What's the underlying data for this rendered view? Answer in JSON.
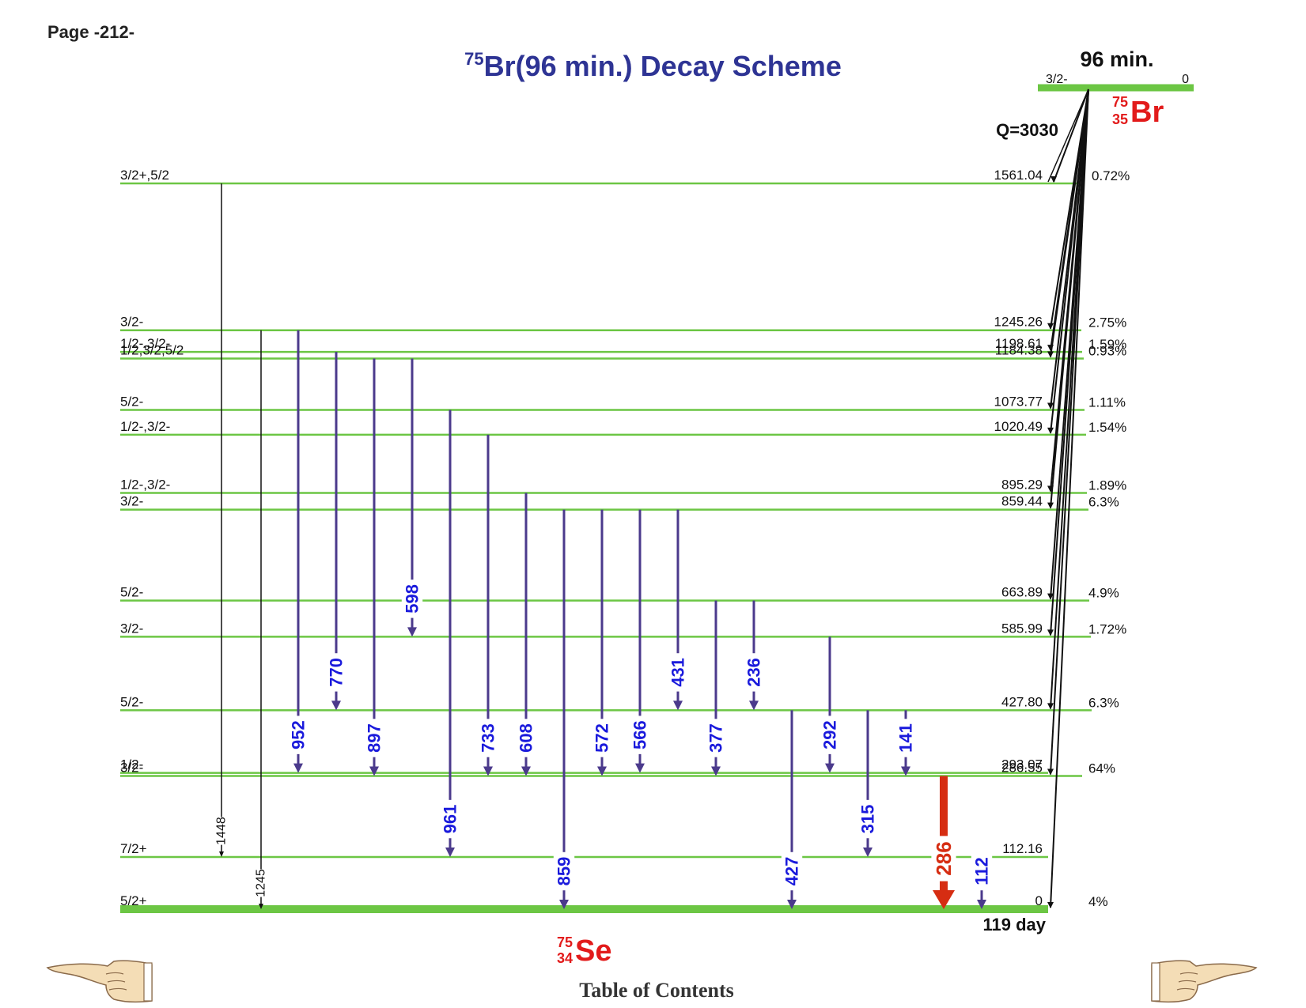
{
  "page_label": "Page -212-",
  "title": {
    "mass": "75",
    "text": "Br(96 min.) Decay Scheme"
  },
  "parent": {
    "halflife": "96 min.",
    "spin": "3/2-",
    "energy": "0",
    "mass": "75",
    "z": "35",
    "symbol": "Br",
    "q_value": "Q=3030"
  },
  "daughter": {
    "mass": "75",
    "z": "34",
    "symbol": "Se",
    "ground_halflife": "119 day"
  },
  "levels": [
    {
      "energy": "1561.04",
      "spin": "3/2+,5/2",
      "feeding": "0.72%"
    },
    {
      "energy": "1245.26",
      "spin": "3/2-",
      "feeding": "2.75%"
    },
    {
      "energy": "1198.61",
      "spin": "1/2-,3/2-",
      "feeding": "1.59%"
    },
    {
      "energy": "1184.38",
      "spin": "1/2,3/2,5/2",
      "feeding": "0.93%"
    },
    {
      "energy": "1073.77",
      "spin": "5/2-",
      "feeding": "1.11%"
    },
    {
      "energy": "1020.49",
      "spin": "1/2-,3/2-",
      "feeding": "1.54%"
    },
    {
      "energy": "895.29",
      "spin": "1/2-,3/2-",
      "feeding": "1.89%"
    },
    {
      "energy": "859.44",
      "spin": "3/2-",
      "feeding": "6.3%"
    },
    {
      "energy": "663.89",
      "spin": "5/2-",
      "feeding": "4.9%"
    },
    {
      "energy": "585.99",
      "spin": "3/2-",
      "feeding": "1.72%"
    },
    {
      "energy": "427.80",
      "spin": "5/2-",
      "feeding": "6.3%"
    },
    {
      "energy": "293.07",
      "spin": "1/2-",
      "feeding": ""
    },
    {
      "energy": "286.55",
      "spin": "3/2-",
      "feeding": "64%"
    },
    {
      "energy": "112.16",
      "spin": "7/2+",
      "feeding": ""
    },
    {
      "energy": "0",
      "spin": "5/2+",
      "feeding": "4%"
    }
  ],
  "transitions": [
    {
      "label": "1448",
      "from": "1561.04",
      "to": "112.16",
      "style": "thin"
    },
    {
      "label": "1245",
      "from": "1245.26",
      "to": "0",
      "style": "thin"
    },
    {
      "label": "952",
      "from": "1245.26",
      "to": "293.07",
      "style": "normal"
    },
    {
      "label": "770",
      "from": "1198.61",
      "to": "427.80",
      "style": "normal"
    },
    {
      "label": "897",
      "from": "1184.38",
      "to": "286.55",
      "style": "normal"
    },
    {
      "label": "598",
      "from": "1184.38",
      "to": "585.99",
      "style": "normal"
    },
    {
      "label": "961",
      "from": "1073.77",
      "to": "112.16",
      "style": "normal"
    },
    {
      "label": "733",
      "from": "1020.49",
      "to": "286.55",
      "style": "normal"
    },
    {
      "label": "608",
      "from": "895.29",
      "to": "286.55",
      "style": "normal"
    },
    {
      "label": "859",
      "from": "859.44",
      "to": "0",
      "style": "normal"
    },
    {
      "label": "572",
      "from": "859.44",
      "to": "286.55",
      "style": "normal"
    },
    {
      "label": "566",
      "from": "859.44",
      "to": "293.07",
      "style": "normal"
    },
    {
      "label": "431",
      "from": "859.44",
      "to": "427.80",
      "style": "normal"
    },
    {
      "label": "377",
      "from": "663.89",
      "to": "286.55",
      "style": "normal"
    },
    {
      "label": "236",
      "from": "663.89",
      "to": "427.80",
      "style": "normal"
    },
    {
      "label": "427",
      "from": "427.80",
      "to": "0",
      "style": "normal"
    },
    {
      "label": "292",
      "from": "585.99",
      "to": "293.07",
      "style": "normal"
    },
    {
      "label": "315",
      "from": "427.80",
      "to": "112.16",
      "style": "normal"
    },
    {
      "label": "141",
      "from": "427.80",
      "to": "286.55",
      "style": "normal"
    },
    {
      "label": "286",
      "from": "286.55",
      "to": "0",
      "style": "strong"
    },
    {
      "label": "112",
      "from": "112.16",
      "to": "0",
      "style": "normal"
    }
  ],
  "colors": {
    "level": "#6cc644",
    "gamma": "#4b3a8c",
    "gamma_label": "#1a1adc",
    "strong": "#d62d12",
    "nuclide": "#e21b1b",
    "title": "#2e3494"
  },
  "table_of_contents": "Table of Contents",
  "icons": {
    "previous": "pointing-hand-left-icon",
    "next": "pointing-hand-right-icon"
  }
}
